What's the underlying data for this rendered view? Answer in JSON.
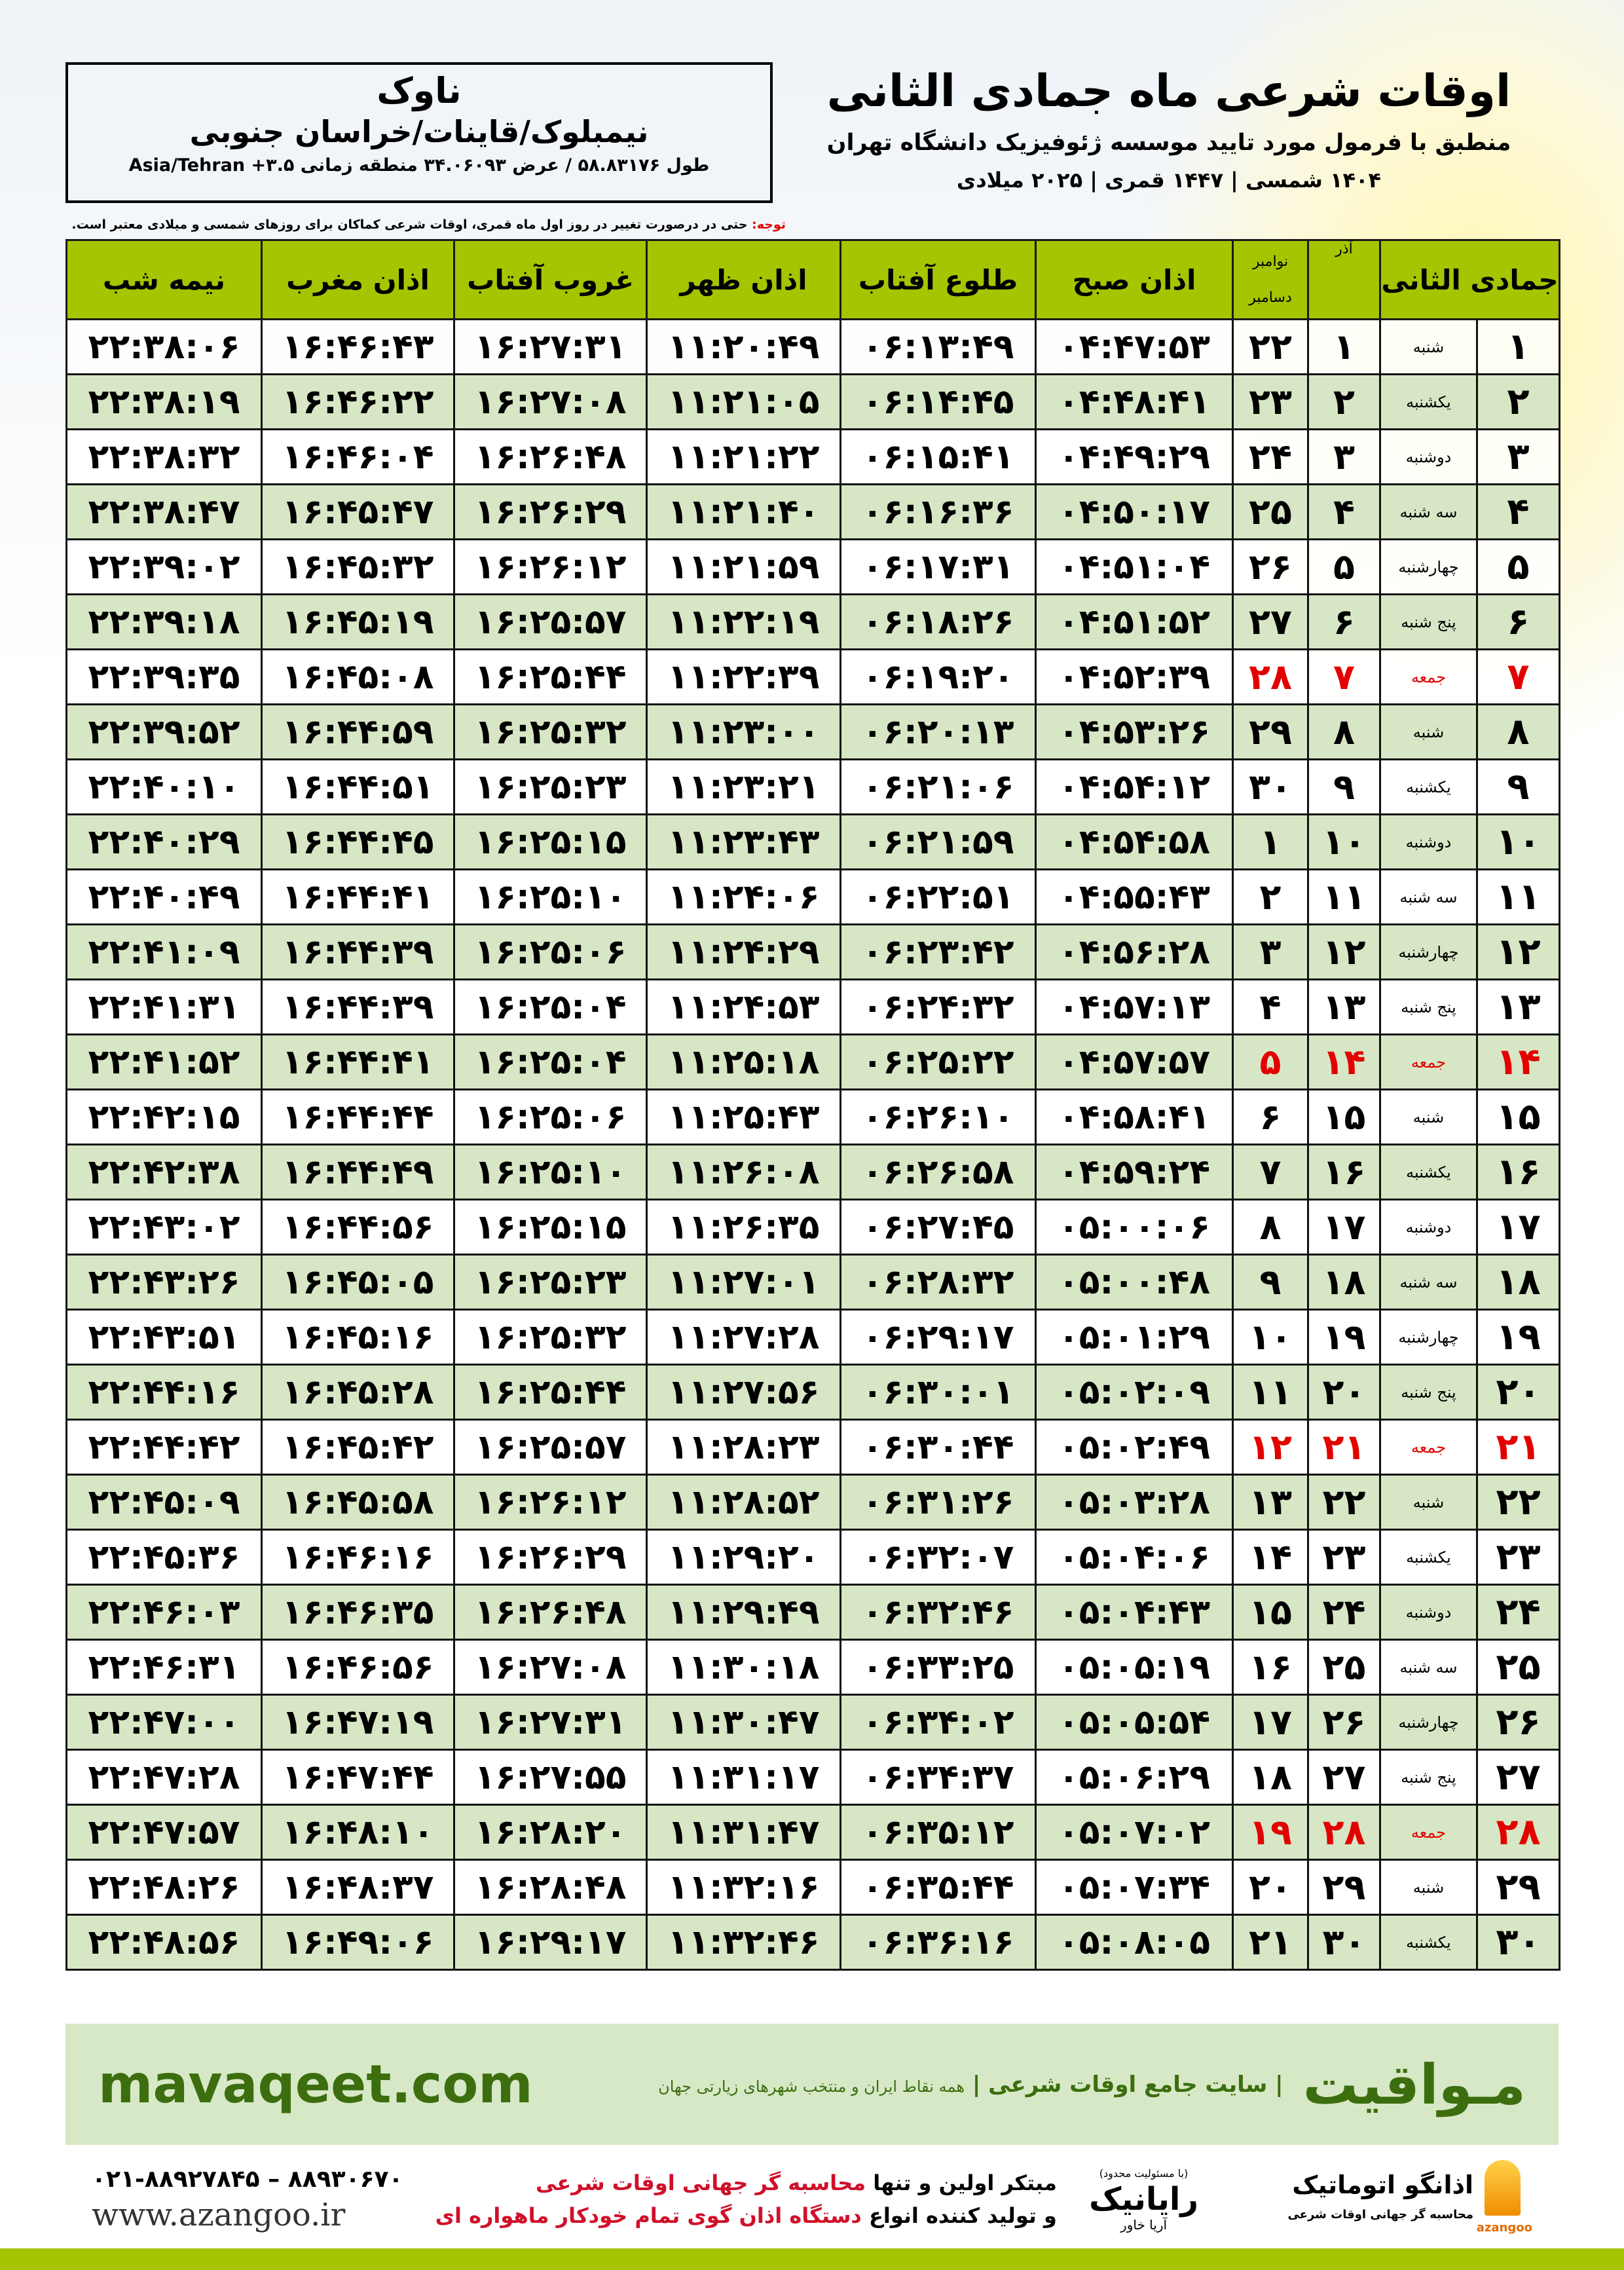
{
  "location": {
    "city": "ناوک",
    "region": "نیمبلوک/قاینات/خراسان جنوبی",
    "coords": "طول ۵۸.۸۳۱۷۶ / عرض ۳۴.۰۶۰۹۳ منطقه زمانی Asia/Tehran +۳.۵"
  },
  "header": {
    "title": "اوقات شرعی ماه جمادی الثانی",
    "subtitle": "منطبق با فرمول مورد تایید موسسه ژئوفیزیک دانشگاه تهران",
    "years": "۱۴۰۴ شمسی | ۱۴۴۷ قمری | ۲۰۲۵ میلادی"
  },
  "note": {
    "label": "توجه:",
    "text": " حتی در درصورت تغییر در روز اول ماه قمری، اوقات شرعی کماکان برای روزهای شمسی و میلادی معتبر است."
  },
  "colors": {
    "header_green": "#a6c400",
    "row_green": "#d7e7c5",
    "holiday_red": "#e30000",
    "brand_green": "#3c6e0f"
  },
  "table": {
    "columns": {
      "day": "جمادی الثانی",
      "azar": "آذر",
      "nov": "نوامبر",
      "dec": "دسامبر",
      "sobh": "اذان صبح",
      "tolu": "طلوع آفتاب",
      "zohr": "اذان ظهر",
      "ghorub": "غروب آفتاب",
      "maghreb": "اذان مغرب",
      "nimeh": "نیمه شب"
    },
    "rows": [
      {
        "day": "۱",
        "weekday": "شنبه",
        "azar": "۱",
        "greg": "۲۲",
        "sobh": "۰۴:۴۷:۵۳",
        "tolu": "۰۶:۱۳:۴۹",
        "zohr": "۱۱:۲۰:۴۹",
        "ghorub": "۱۶:۲۷:۳۱",
        "maghreb": "۱۶:۴۶:۴۳",
        "nimeh": "۲۲:۳۸:۰۶",
        "holiday": false
      },
      {
        "day": "۲",
        "weekday": "یکشنبه",
        "azar": "۲",
        "greg": "۲۳",
        "sobh": "۰۴:۴۸:۴۱",
        "tolu": "۰۶:۱۴:۴۵",
        "zohr": "۱۱:۲۱:۰۵",
        "ghorub": "۱۶:۲۷:۰۸",
        "maghreb": "۱۶:۴۶:۲۲",
        "nimeh": "۲۲:۳۸:۱۹",
        "holiday": false
      },
      {
        "day": "۳",
        "weekday": "دوشنبه",
        "azar": "۳",
        "greg": "۲۴",
        "sobh": "۰۴:۴۹:۲۹",
        "tolu": "۰۶:۱۵:۴۱",
        "zohr": "۱۱:۲۱:۲۲",
        "ghorub": "۱۶:۲۶:۴۸",
        "maghreb": "۱۶:۴۶:۰۴",
        "nimeh": "۲۲:۳۸:۳۲",
        "holiday": false
      },
      {
        "day": "۴",
        "weekday": "سه شنبه",
        "azar": "۴",
        "greg": "۲۵",
        "sobh": "۰۴:۵۰:۱۷",
        "tolu": "۰۶:۱۶:۳۶",
        "zohr": "۱۱:۲۱:۴۰",
        "ghorub": "۱۶:۲۶:۲۹",
        "maghreb": "۱۶:۴۵:۴۷",
        "nimeh": "۲۲:۳۸:۴۷",
        "holiday": false
      },
      {
        "day": "۵",
        "weekday": "چهارشنبه",
        "azar": "۵",
        "greg": "۲۶",
        "sobh": "۰۴:۵۱:۰۴",
        "tolu": "۰۶:۱۷:۳۱",
        "zohr": "۱۱:۲۱:۵۹",
        "ghorub": "۱۶:۲۶:۱۲",
        "maghreb": "۱۶:۴۵:۳۲",
        "nimeh": "۲۲:۳۹:۰۲",
        "holiday": false
      },
      {
        "day": "۶",
        "weekday": "پنج شنبه",
        "azar": "۶",
        "greg": "۲۷",
        "sobh": "۰۴:۵۱:۵۲",
        "tolu": "۰۶:۱۸:۲۶",
        "zohr": "۱۱:۲۲:۱۹",
        "ghorub": "۱۶:۲۵:۵۷",
        "maghreb": "۱۶:۴۵:۱۹",
        "nimeh": "۲۲:۳۹:۱۸",
        "holiday": false
      },
      {
        "day": "۷",
        "weekday": "جمعه",
        "azar": "۷",
        "greg": "۲۸",
        "sobh": "۰۴:۵۲:۳۹",
        "tolu": "۰۶:۱۹:۲۰",
        "zohr": "۱۱:۲۲:۳۹",
        "ghorub": "۱۶:۲۵:۴۴",
        "maghreb": "۱۶:۴۵:۰۸",
        "nimeh": "۲۲:۳۹:۳۵",
        "holiday": true
      },
      {
        "day": "۸",
        "weekday": "شنبه",
        "azar": "۸",
        "greg": "۲۹",
        "sobh": "۰۴:۵۳:۲۶",
        "tolu": "۰۶:۲۰:۱۳",
        "zohr": "۱۱:۲۳:۰۰",
        "ghorub": "۱۶:۲۵:۳۲",
        "maghreb": "۱۶:۴۴:۵۹",
        "nimeh": "۲۲:۳۹:۵۲",
        "holiday": false
      },
      {
        "day": "۹",
        "weekday": "یکشنبه",
        "azar": "۹",
        "greg": "۳۰",
        "sobh": "۰۴:۵۴:۱۲",
        "tolu": "۰۶:۲۱:۰۶",
        "zohr": "۱۱:۲۳:۲۱",
        "ghorub": "۱۶:۲۵:۲۳",
        "maghreb": "۱۶:۴۴:۵۱",
        "nimeh": "۲۲:۴۰:۱۰",
        "holiday": false
      },
      {
        "day": "۱۰",
        "weekday": "دوشنبه",
        "azar": "۱۰",
        "greg": "۱",
        "sobh": "۰۴:۵۴:۵۸",
        "tolu": "۰۶:۲۱:۵۹",
        "zohr": "۱۱:۲۳:۴۳",
        "ghorub": "۱۶:۲۵:۱۵",
        "maghreb": "۱۶:۴۴:۴۵",
        "nimeh": "۲۲:۴۰:۲۹",
        "holiday": false
      },
      {
        "day": "۱۱",
        "weekday": "سه شنبه",
        "azar": "۱۱",
        "greg": "۲",
        "sobh": "۰۴:۵۵:۴۳",
        "tolu": "۰۶:۲۲:۵۱",
        "zohr": "۱۱:۲۴:۰۶",
        "ghorub": "۱۶:۲۵:۱۰",
        "maghreb": "۱۶:۴۴:۴۱",
        "nimeh": "۲۲:۴۰:۴۹",
        "holiday": false
      },
      {
        "day": "۱۲",
        "weekday": "چهارشنبه",
        "azar": "۱۲",
        "greg": "۳",
        "sobh": "۰۴:۵۶:۲۸",
        "tolu": "۰۶:۲۳:۴۲",
        "zohr": "۱۱:۲۴:۲۹",
        "ghorub": "۱۶:۲۵:۰۶",
        "maghreb": "۱۶:۴۴:۳۹",
        "nimeh": "۲۲:۴۱:۰۹",
        "holiday": false
      },
      {
        "day": "۱۳",
        "weekday": "پنج شنبه",
        "azar": "۱۳",
        "greg": "۴",
        "sobh": "۰۴:۵۷:۱۳",
        "tolu": "۰۶:۲۴:۳۲",
        "zohr": "۱۱:۲۴:۵۳",
        "ghorub": "۱۶:۲۵:۰۴",
        "maghreb": "۱۶:۴۴:۳۹",
        "nimeh": "۲۲:۴۱:۳۱",
        "holiday": false
      },
      {
        "day": "۱۴",
        "weekday": "جمعه",
        "azar": "۱۴",
        "greg": "۵",
        "sobh": "۰۴:۵۷:۵۷",
        "tolu": "۰۶:۲۵:۲۲",
        "zohr": "۱۱:۲۵:۱۸",
        "ghorub": "۱۶:۲۵:۰۴",
        "maghreb": "۱۶:۴۴:۴۱",
        "nimeh": "۲۲:۴۱:۵۲",
        "holiday": true
      },
      {
        "day": "۱۵",
        "weekday": "شنبه",
        "azar": "۱۵",
        "greg": "۶",
        "sobh": "۰۴:۵۸:۴۱",
        "tolu": "۰۶:۲۶:۱۰",
        "zohr": "۱۱:۲۵:۴۳",
        "ghorub": "۱۶:۲۵:۰۶",
        "maghreb": "۱۶:۴۴:۴۴",
        "nimeh": "۲۲:۴۲:۱۵",
        "holiday": false
      },
      {
        "day": "۱۶",
        "weekday": "یکشنبه",
        "azar": "۱۶",
        "greg": "۷",
        "sobh": "۰۴:۵۹:۲۴",
        "tolu": "۰۶:۲۶:۵۸",
        "zohr": "۱۱:۲۶:۰۸",
        "ghorub": "۱۶:۲۵:۱۰",
        "maghreb": "۱۶:۴۴:۴۹",
        "nimeh": "۲۲:۴۲:۳۸",
        "holiday": false
      },
      {
        "day": "۱۷",
        "weekday": "دوشنبه",
        "azar": "۱۷",
        "greg": "۸",
        "sobh": "۰۵:۰۰:۰۶",
        "tolu": "۰۶:۲۷:۴۵",
        "zohr": "۱۱:۲۶:۳۵",
        "ghorub": "۱۶:۲۵:۱۵",
        "maghreb": "۱۶:۴۴:۵۶",
        "nimeh": "۲۲:۴۳:۰۲",
        "holiday": false
      },
      {
        "day": "۱۸",
        "weekday": "سه شنبه",
        "azar": "۱۸",
        "greg": "۹",
        "sobh": "۰۵:۰۰:۴۸",
        "tolu": "۰۶:۲۸:۳۲",
        "zohr": "۱۱:۲۷:۰۱",
        "ghorub": "۱۶:۲۵:۲۳",
        "maghreb": "۱۶:۴۵:۰۵",
        "nimeh": "۲۲:۴۳:۲۶",
        "holiday": false
      },
      {
        "day": "۱۹",
        "weekday": "چهارشنبه",
        "azar": "۱۹",
        "greg": "۱۰",
        "sobh": "۰۵:۰۱:۲۹",
        "tolu": "۰۶:۲۹:۱۷",
        "zohr": "۱۱:۲۷:۲۸",
        "ghorub": "۱۶:۲۵:۳۲",
        "maghreb": "۱۶:۴۵:۱۶",
        "nimeh": "۲۲:۴۳:۵۱",
        "holiday": false
      },
      {
        "day": "۲۰",
        "weekday": "پنج شنبه",
        "azar": "۲۰",
        "greg": "۱۱",
        "sobh": "۰۵:۰۲:۰۹",
        "tolu": "۰۶:۳۰:۰۱",
        "zohr": "۱۱:۲۷:۵۶",
        "ghorub": "۱۶:۲۵:۴۴",
        "maghreb": "۱۶:۴۵:۲۸",
        "nimeh": "۲۲:۴۴:۱۶",
        "holiday": false
      },
      {
        "day": "۲۱",
        "weekday": "جمعه",
        "azar": "۲۱",
        "greg": "۱۲",
        "sobh": "۰۵:۰۲:۴۹",
        "tolu": "۰۶:۳۰:۴۴",
        "zohr": "۱۱:۲۸:۲۳",
        "ghorub": "۱۶:۲۵:۵۷",
        "maghreb": "۱۶:۴۵:۴۲",
        "nimeh": "۲۲:۴۴:۴۲",
        "holiday": true
      },
      {
        "day": "۲۲",
        "weekday": "شنبه",
        "azar": "۲۲",
        "greg": "۱۳",
        "sobh": "۰۵:۰۳:۲۸",
        "tolu": "۰۶:۳۱:۲۶",
        "zohr": "۱۱:۲۸:۵۲",
        "ghorub": "۱۶:۲۶:۱۲",
        "maghreb": "۱۶:۴۵:۵۸",
        "nimeh": "۲۲:۴۵:۰۹",
        "holiday": false
      },
      {
        "day": "۲۳",
        "weekday": "یکشنبه",
        "azar": "۲۳",
        "greg": "۱۴",
        "sobh": "۰۵:۰۴:۰۶",
        "tolu": "۰۶:۳۲:۰۷",
        "zohr": "۱۱:۲۹:۲۰",
        "ghorub": "۱۶:۲۶:۲۹",
        "maghreb": "۱۶:۴۶:۱۶",
        "nimeh": "۲۲:۴۵:۳۶",
        "holiday": false
      },
      {
        "day": "۲۴",
        "weekday": "دوشنبه",
        "azar": "۲۴",
        "greg": "۱۵",
        "sobh": "۰۵:۰۴:۴۳",
        "tolu": "۰۶:۳۲:۴۶",
        "zohr": "۱۱:۲۹:۴۹",
        "ghorub": "۱۶:۲۶:۴۸",
        "maghreb": "۱۶:۴۶:۳۵",
        "nimeh": "۲۲:۴۶:۰۳",
        "holiday": false
      },
      {
        "day": "۲۵",
        "weekday": "سه شنبه",
        "azar": "۲۵",
        "greg": "۱۶",
        "sobh": "۰۵:۰۵:۱۹",
        "tolu": "۰۶:۳۳:۲۵",
        "zohr": "۱۱:۳۰:۱۸",
        "ghorub": "۱۶:۲۷:۰۸",
        "maghreb": "۱۶:۴۶:۵۶",
        "nimeh": "۲۲:۴۶:۳۱",
        "holiday": false
      },
      {
        "day": "۲۶",
        "weekday": "چهارشنبه",
        "azar": "۲۶",
        "greg": "۱۷",
        "sobh": "۰۵:۰۵:۵۴",
        "tolu": "۰۶:۳۴:۰۲",
        "zohr": "۱۱:۳۰:۴۷",
        "ghorub": "۱۶:۲۷:۳۱",
        "maghreb": "۱۶:۴۷:۱۹",
        "nimeh": "۲۲:۴۷:۰۰",
        "holiday": false
      },
      {
        "day": "۲۷",
        "weekday": "پنج شنبه",
        "azar": "۲۷",
        "greg": "۱۸",
        "sobh": "۰۵:۰۶:۲۹",
        "tolu": "۰۶:۳۴:۳۷",
        "zohr": "۱۱:۳۱:۱۷",
        "ghorub": "۱۶:۲۷:۵۵",
        "maghreb": "۱۶:۴۷:۴۴",
        "nimeh": "۲۲:۴۷:۲۸",
        "holiday": false
      },
      {
        "day": "۲۸",
        "weekday": "جمعه",
        "azar": "۲۸",
        "greg": "۱۹",
        "sobh": "۰۵:۰۷:۰۲",
        "tolu": "۰۶:۳۵:۱۲",
        "zohr": "۱۱:۳۱:۴۷",
        "ghorub": "۱۶:۲۸:۲۰",
        "maghreb": "۱۶:۴۸:۱۰",
        "nimeh": "۲۲:۴۷:۵۷",
        "holiday": true
      },
      {
        "day": "۲۹",
        "weekday": "شنبه",
        "azar": "۲۹",
        "greg": "۲۰",
        "sobh": "۰۵:۰۷:۳۴",
        "tolu": "۰۶:۳۵:۴۴",
        "zohr": "۱۱:۳۲:۱۶",
        "ghorub": "۱۶:۲۸:۴۸",
        "maghreb": "۱۶:۴۸:۳۷",
        "nimeh": "۲۲:۴۸:۲۶",
        "holiday": false
      },
      {
        "day": "۳۰",
        "weekday": "یکشنبه",
        "azar": "۳۰",
        "greg": "۲۱",
        "sobh": "۰۵:۰۸:۰۵",
        "tolu": "۰۶:۳۶:۱۶",
        "zohr": "۱۱:۳۲:۴۶",
        "ghorub": "۱۶:۲۹:۱۷",
        "maghreb": "۱۶:۴۹:۰۶",
        "nimeh": "۲۲:۴۸:۵۶",
        "holiday": false
      }
    ]
  },
  "banner": {
    "site": "mavaqeet.com",
    "brand": "مـواقیت",
    "tagline": "| سایت جامع اوقات شرعی |",
    "tagline_small": "همه نقاط ایران و منتخب شهرهای زیارتی جهان"
  },
  "footer": {
    "phone": "۰۲۱-۸۸۹۲۷۸۴۵ – ۸۸۹۳۰۶۷۰",
    "website": "www.azangoo.ir",
    "ad_line1_a": "مبتکر اولین و تنها ",
    "ad_line1_b": "محاسبه گر جهانی اوقات شرعی",
    "ad_line2_a": "و تولید کننده انواع ",
    "ad_line2_b": "دستگاه اذان گوی تمام خودکار ماهواره ای",
    "rayanik_name": "رایانیک",
    "rayanik_sub": "آریا خاور",
    "rayanik_note": "(با مسئولیت محدود)",
    "azangoo_name": "اذانگو اتوماتیک",
    "azangoo_sub": "محاسبه گر جهانی اوقات شرعی",
    "azangoo_en": "azangoo"
  }
}
